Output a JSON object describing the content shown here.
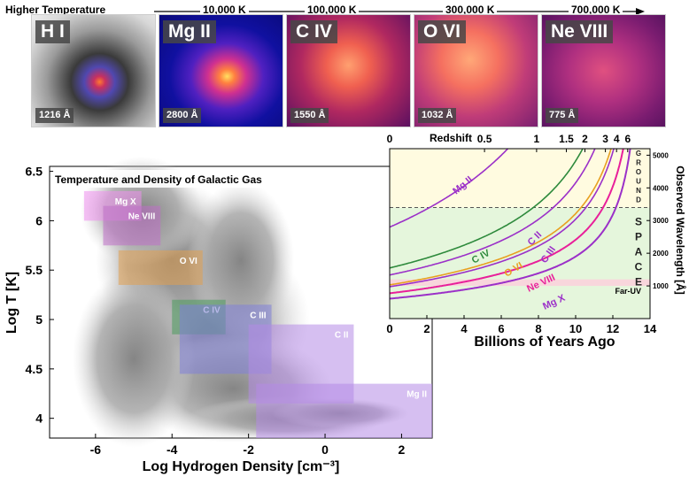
{
  "header": {
    "higher_temperature_label": "Higher Temperature",
    "temperature_marks": [
      "10,000 K",
      "100,000 K",
      "300,000 K",
      "700,000 K"
    ]
  },
  "panels": [
    {
      "ion": "H I",
      "wavelength": "1216 Å",
      "theme": "hi"
    },
    {
      "ion": "Mg II",
      "wavelength": "2800 Å",
      "theme": "mgii"
    },
    {
      "ion": "C IV",
      "wavelength": "1550 Å",
      "theme": "civ"
    },
    {
      "ion": "O VI",
      "wavelength": "1032 Å",
      "theme": "ovi"
    },
    {
      "ion": "Ne VIII",
      "wavelength": "775 Å",
      "theme": "neviii"
    }
  ],
  "chart_data": [
    {
      "type": "scatter",
      "title": "Temperature and Density of Galactic Gas",
      "xlabel": "Log Hydrogen Density [cm⁻³]",
      "ylabel": "Log T [K]",
      "xlim": [
        -7.2,
        2.8
      ],
      "ylim": [
        3.8,
        6.55
      ],
      "x_ticks": [
        -6,
        -4,
        -2,
        0,
        2
      ],
      "y_ticks": [
        4,
        4.5,
        5,
        5.5,
        6,
        6.5
      ],
      "regions": [
        {
          "ion": "Mg X",
          "x": [
            -6.3,
            -4.8
          ],
          "y": [
            6.0,
            6.3
          ],
          "color": "#ee90ee"
        },
        {
          "ion": "Ne VIII",
          "x": [
            -5.8,
            -4.3
          ],
          "y": [
            5.75,
            6.15
          ],
          "color": "#c070c8"
        },
        {
          "ion": "O VI",
          "x": [
            -5.4,
            -3.2
          ],
          "y": [
            5.35,
            5.7
          ],
          "color": "#e2a050"
        },
        {
          "ion": "C IV",
          "x": [
            -4.0,
            -2.6
          ],
          "y": [
            4.85,
            5.2
          ],
          "color": "#4a9a5c"
        },
        {
          "ion": "C III",
          "x": [
            -3.8,
            -1.4
          ],
          "y": [
            4.45,
            5.15
          ],
          "color": "#8080d8"
        },
        {
          "ion": "C II",
          "x": [
            -2.0,
            0.75
          ],
          "y": [
            4.15,
            4.95
          ],
          "color": "#b48ae6"
        },
        {
          "ion": "Mg II",
          "x": [
            -1.8,
            2.8
          ],
          "y": [
            3.8,
            4.35
          ],
          "color": "#b48ae6"
        }
      ]
    },
    {
      "type": "line",
      "xlabel": "Billions of Years Ago",
      "ylabel": "Observed Wavelength [Å]",
      "top_label": "Redshift",
      "xlim": [
        0,
        14
      ],
      "ylim": [
        0,
        5200
      ],
      "x_ticks": [
        0,
        2,
        4,
        6,
        8,
        10,
        12,
        14
      ],
      "y_ticks": [
        1000,
        2000,
        3000,
        4000,
        5000
      ],
      "redshift_ticks": [
        {
          "label": "0",
          "t": 0
        },
        {
          "label": "0.5",
          "t": 5.1
        },
        {
          "label": "1",
          "t": 7.9
        },
        {
          "label": "1.5",
          "t": 9.5
        },
        {
          "label": "2",
          "t": 10.5
        },
        {
          "label": "3",
          "t": 11.6
        },
        {
          "label": "4",
          "t": 12.2
        },
        {
          "label": "6",
          "t": 12.8
        }
      ],
      "ground_label_letters": [
        "G",
        "R",
        "O",
        "U",
        "N",
        "D"
      ],
      "space_label_letters": [
        "S",
        "P",
        "A",
        "C",
        "E"
      ],
      "far_uv_label": "Far-UV",
      "atmosphere_cutoff": 3400,
      "far_uv_band": [
        1000,
        1200
      ],
      "series": [
        {
          "name": "Mg II",
          "rest": 2800,
          "color": "#9b30c8"
        },
        {
          "name": "C IV",
          "rest": 1550,
          "color": "#2e8a3c"
        },
        {
          "name": "C II",
          "rest": 1335,
          "color": "#9b30c8"
        },
        {
          "name": "O VI",
          "rest": 1032,
          "color": "#e8a020"
        },
        {
          "name": "C III",
          "rest": 977,
          "color": "#9b30c8"
        },
        {
          "name": "Ne VIII",
          "rest": 775,
          "color": "#e8209a"
        },
        {
          "name": "Mg X",
          "rest": 610,
          "color": "#9b30c8"
        }
      ]
    }
  ]
}
